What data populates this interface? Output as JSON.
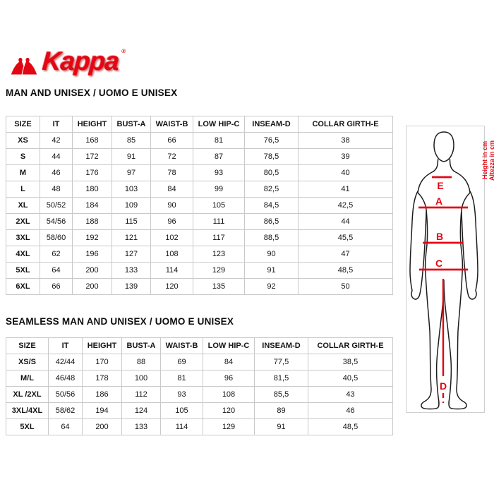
{
  "logo": {
    "brand": "Kappa",
    "registered": "®",
    "color": "#e30613"
  },
  "sections": [
    {
      "title": "MAN AND UNISEX / UOMO E UNISEX",
      "table": {
        "headers": [
          "SIZE",
          "IT",
          "HEIGHT",
          "BUST-A",
          "WAIST-B",
          "LOW HIP-C",
          "INSEAM-D",
          "COLLAR GIRTH-E"
        ],
        "rows": [
          [
            "XS",
            "42",
            "168",
            "85",
            "66",
            "81",
            "76,5",
            "38"
          ],
          [
            "S",
            "44",
            "172",
            "91",
            "72",
            "87",
            "78,5",
            "39"
          ],
          [
            "M",
            "46",
            "176",
            "97",
            "78",
            "93",
            "80,5",
            "40"
          ],
          [
            "L",
            "48",
            "180",
            "103",
            "84",
            "99",
            "82,5",
            "41"
          ],
          [
            "XL",
            "50/52",
            "184",
            "109",
            "90",
            "105",
            "84,5",
            "42,5"
          ],
          [
            "2XL",
            "54/56",
            "188",
            "115",
            "96",
            "111",
            "86,5",
            "44"
          ],
          [
            "3XL",
            "58/60",
            "192",
            "121",
            "102",
            "117",
            "88,5",
            "45,5"
          ],
          [
            "4XL",
            "62",
            "196",
            "127",
            "108",
            "123",
            "90",
            "47"
          ],
          [
            "5XL",
            "64",
            "200",
            "133",
            "114",
            "129",
            "91",
            "48,5"
          ],
          [
            "6XL",
            "66",
            "200",
            "139",
            "120",
            "135",
            "92",
            "50"
          ]
        ]
      }
    },
    {
      "title": "SEAMLESS MAN AND UNISEX / UOMO E UNISEX",
      "table": {
        "headers": [
          "SIZE",
          "IT",
          "HEIGHT",
          "BUST-A",
          "WAIST-B",
          "LOW HIP-C",
          "INSEAM-D",
          "COLLAR GIRTH-E"
        ],
        "rows": [
          [
            "XS/S",
            "42/44",
            "170",
            "88",
            "69",
            "84",
            "77,5",
            "38,5"
          ],
          [
            "M/L",
            "46/48",
            "178",
            "100",
            "81",
            "96",
            "81,5",
            "40,5"
          ],
          [
            "XL /2XL",
            "50/56",
            "186",
            "112",
            "93",
            "108",
            "85,5",
            "43"
          ],
          [
            "3XL/4XL",
            "58/62",
            "194",
            "124",
            "105",
            "120",
            "89",
            "46"
          ],
          [
            "5XL",
            "64",
            "200",
            "133",
            "114",
            "129",
            "91",
            "48,5"
          ]
        ]
      }
    }
  ],
  "diagram": {
    "measure_labels": {
      "E": "E",
      "A": "A",
      "B": "B",
      "C": "C",
      "D": "D"
    },
    "height_label_en": "Height in cm",
    "height_label_it": "Altezza in cm",
    "accent_color": "#e30613"
  }
}
